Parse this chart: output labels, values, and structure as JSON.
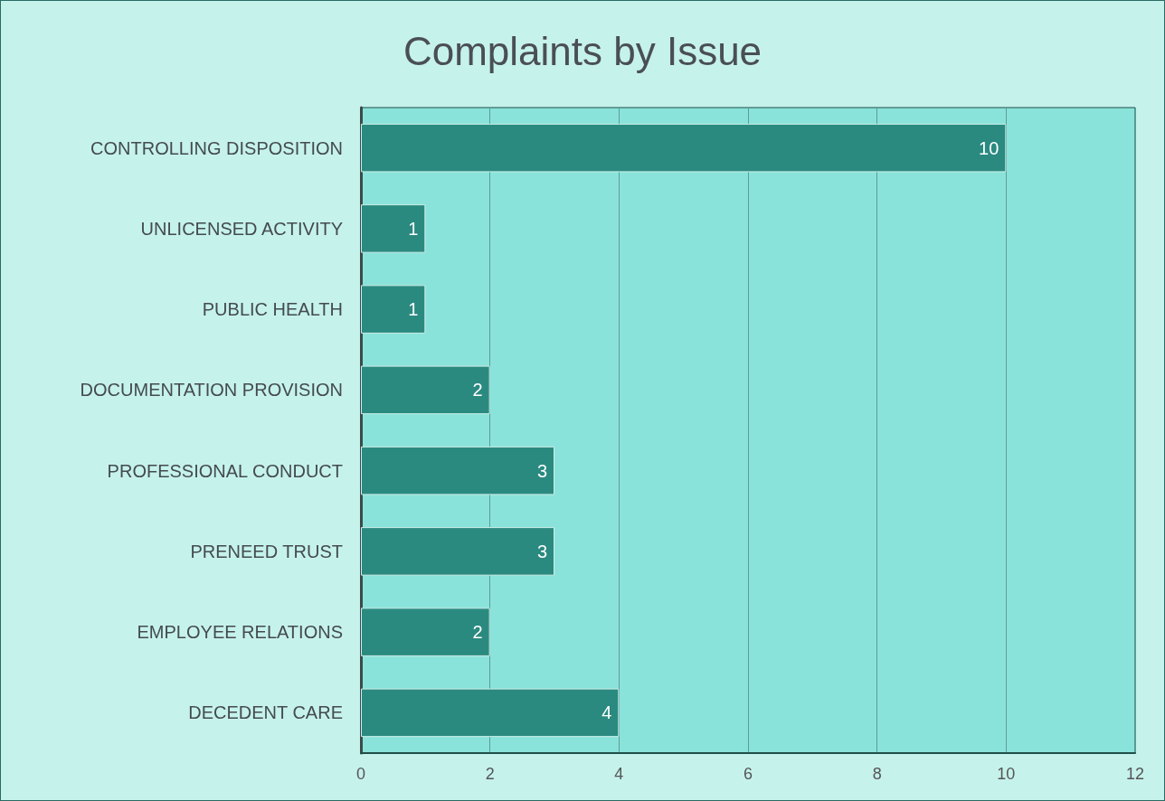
{
  "chart_data": {
    "type": "bar",
    "orientation": "horizontal",
    "title": "Complaints by Issue",
    "categories": [
      "CONTROLLING DISPOSITION",
      "UNLICENSED ACTIVITY",
      "PUBLIC HEALTH",
      "DOCUMENTATION PROVISION",
      "PROFESSIONAL CONDUCT",
      "PRENEED TRUST",
      "EMPLOYEE RELATIONS",
      "DECEDENT CARE"
    ],
    "values": [
      10,
      1,
      1,
      2,
      3,
      3,
      2,
      4
    ],
    "color": "#2a8a80",
    "xlim": [
      0,
      12
    ],
    "xticks": [
      0,
      2,
      4,
      6,
      8,
      10,
      12
    ],
    "grid": "x",
    "data_labels": true
  }
}
